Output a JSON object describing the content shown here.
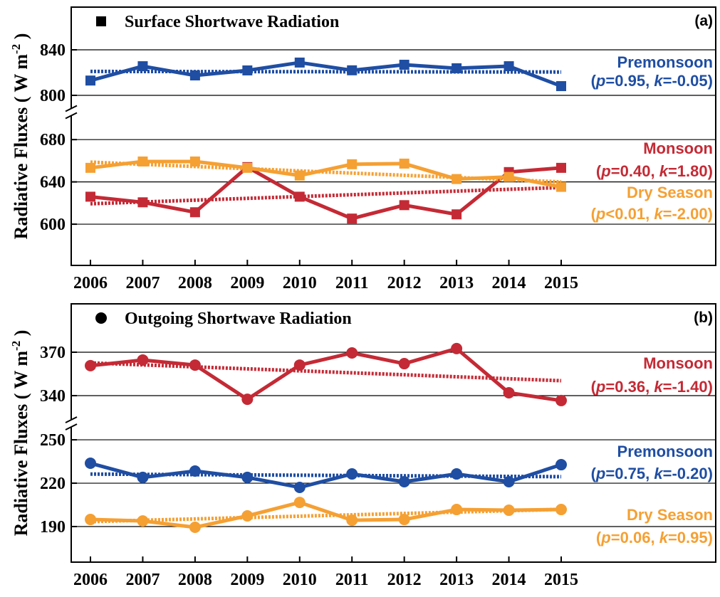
{
  "chart_data": [
    {
      "type": "line",
      "title": "Surface Shortwave Radiation",
      "panel_label": "(a)",
      "marker": "square",
      "y_label": "Radiative Fluxes ( W m",
      "y_label_sup": "-2",
      "y_label_end": " )",
      "categories": [
        "2006",
        "2007",
        "2008",
        "2009",
        "2010",
        "2011",
        "2012",
        "2013",
        "2014",
        "2015"
      ],
      "y_segments": {
        "upper": {
          "ylim": [
            790,
            877.5
          ],
          "yticks": [
            800,
            840
          ]
        },
        "lower": {
          "ylim": [
            561,
            701
          ],
          "yticks": [
            600,
            640,
            680
          ]
        }
      },
      "series": [
        {
          "name": "Premonsoon",
          "annotation": "(p=0.95, k=-0.05)",
          "color": "#1f4ea3",
          "axis": "upper",
          "values": [
            813,
            825.6,
            817.5,
            821.9,
            828.8,
            822,
            826.9,
            823.8,
            825.6,
            808.1
          ],
          "trend": [
            821,
            820.5
          ]
        },
        {
          "name": "Monsoon",
          "annotation": "(p=0.40, k=1.80)",
          "color": "#c42a35",
          "axis": "lower",
          "values": [
            626,
            620.7,
            611.3,
            654,
            626,
            605.3,
            618,
            609.3,
            649.3,
            653.3
          ],
          "trend": [
            619.3,
            634.7
          ]
        },
        {
          "name": "Dry Season",
          "annotation": "(p<0.01, k=-2.00)",
          "color": "#f5a033",
          "axis": "lower",
          "values": [
            653.3,
            659.3,
            659.3,
            653.3,
            646,
            656.7,
            657.3,
            642.7,
            644.7,
            635.3
          ],
          "trend": [
            658.7,
            640
          ]
        }
      ]
    },
    {
      "type": "line",
      "title": "Outgoing Shortwave Radiation",
      "panel_label": "(b)",
      "marker": "circle",
      "y_label": "Radiative Fluxes ( W m",
      "y_label_sup": "-2",
      "y_label_end": " )",
      "categories": [
        "2006",
        "2007",
        "2008",
        "2009",
        "2010",
        "2011",
        "2012",
        "2013",
        "2014",
        "2015"
      ],
      "y_segments": {
        "upper": {
          "ylim": [
            323.3,
            403.4
          ],
          "yticks": [
            340,
            370
          ]
        },
        "lower": {
          "ylim": [
            165.4,
            258.9
          ],
          "yticks": [
            190,
            220,
            250
          ]
        }
      },
      "series": [
        {
          "name": "Monsoon",
          "annotation": "(p=0.36, k=-1.40)",
          "color": "#c42a35",
          "axis": "upper",
          "values": [
            360.7,
            364.6,
            361.1,
            337.5,
            361.1,
            369.5,
            362.1,
            372.5,
            342,
            336.6
          ],
          "trend": [
            362.6,
            350.3
          ]
        },
        {
          "name": "Premonsoon",
          "annotation": "(p=0.75, k=-0.20)",
          "color": "#1f4ea3",
          "axis": "lower",
          "values": [
            233.8,
            224,
            228.4,
            224,
            217.1,
            226.4,
            221,
            226.4,
            221,
            232.8
          ],
          "trend": [
            226.3,
            224.5
          ]
        },
        {
          "name": "Dry Season",
          "annotation": "(p=0.06, k=0.95)",
          "color": "#f5a033",
          "axis": "lower",
          "values": [
            194.9,
            193.9,
            189.5,
            197.4,
            206.7,
            194.4,
            194.9,
            201.8,
            201.3,
            201.8
          ],
          "trend": [
            193.4,
            201.9
          ]
        }
      ]
    }
  ]
}
